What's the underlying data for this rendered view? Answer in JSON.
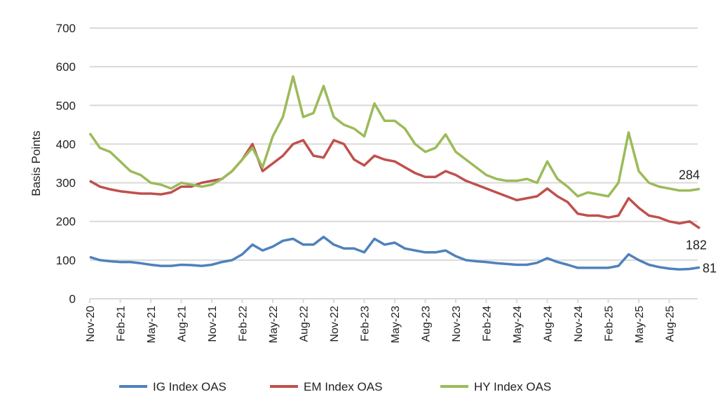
{
  "chart_data": {
    "type": "line",
    "title": "",
    "xlabel": "",
    "ylabel": "Basis Points",
    "ylim": [
      0,
      700
    ],
    "yticks": [
      0,
      100,
      200,
      300,
      400,
      500,
      600,
      700
    ],
    "grid": true,
    "legend_position": "bottom",
    "x_tick_labels": [
      "Nov-20",
      "Feb-21",
      "May-21",
      "Aug-21",
      "Nov-21",
      "Feb-22",
      "May-22",
      "Aug-22",
      "Nov-22",
      "Feb-23",
      "May-23",
      "Aug-23",
      "Nov-23",
      "Feb-24",
      "May-24",
      "Aug-24",
      "Nov-24",
      "Feb-25",
      "May-25",
      "Aug-25"
    ],
    "x_unit": "months since Nov-20",
    "series": [
      {
        "name": "IG Index OAS",
        "color": "#4f81bd",
        "end_label": "81",
        "values": [
          108,
          100,
          97,
          95,
          95,
          92,
          88,
          85,
          85,
          88,
          87,
          85,
          88,
          95,
          100,
          115,
          140,
          125,
          135,
          150,
          155,
          140,
          140,
          160,
          140,
          130,
          130,
          120,
          155,
          140,
          145,
          130,
          125,
          120,
          120,
          125,
          110,
          100,
          97,
          95,
          92,
          90,
          88,
          88,
          93,
          105,
          95,
          88,
          80,
          80,
          80,
          80,
          85,
          115,
          100,
          88,
          82,
          78,
          76,
          77,
          81
        ]
      },
      {
        "name": "EM Index OAS",
        "color": "#c0504d",
        "end_label": "182",
        "values": [
          305,
          290,
          283,
          278,
          275,
          272,
          272,
          270,
          275,
          290,
          290,
          300,
          305,
          310,
          330,
          360,
          400,
          330,
          350,
          370,
          400,
          410,
          370,
          365,
          410,
          400,
          360,
          345,
          370,
          360,
          355,
          340,
          325,
          315,
          315,
          330,
          320,
          305,
          295,
          285,
          275,
          265,
          255,
          260,
          265,
          285,
          265,
          250,
          220,
          215,
          215,
          210,
          215,
          260,
          235,
          215,
          210,
          200,
          195,
          200,
          182
        ]
      },
      {
        "name": "HY Index OAS",
        "color": "#9bbb59",
        "end_label": "284",
        "values": [
          428,
          390,
          380,
          355,
          330,
          320,
          300,
          295,
          285,
          300,
          295,
          290,
          295,
          310,
          330,
          360,
          390,
          340,
          420,
          470,
          575,
          470,
          480,
          550,
          470,
          450,
          440,
          420,
          505,
          460,
          460,
          440,
          400,
          380,
          390,
          425,
          380,
          360,
          340,
          320,
          310,
          305,
          305,
          310,
          300,
          355,
          310,
          290,
          265,
          275,
          270,
          265,
          300,
          430,
          330,
          300,
          290,
          285,
          280,
          280,
          284
        ]
      }
    ]
  }
}
